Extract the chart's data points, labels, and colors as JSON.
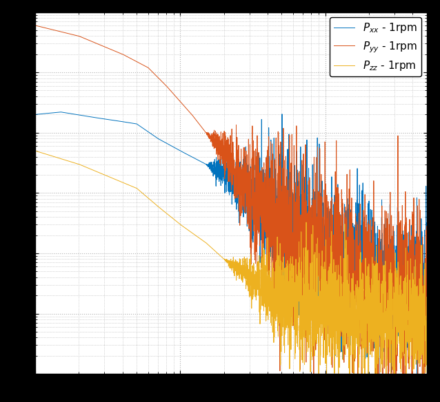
{
  "colors": {
    "pxx": "#0072BD",
    "pyy": "#D95319",
    "pzz": "#EDB120"
  },
  "legend_labels": [
    "$P_{xx}$ - 1rpm",
    "$P_{yy}$ - 1rpm",
    "$P_{zz}$ - 1rpm"
  ],
  "xlim": [
    1,
    500
  ],
  "ylim": [
    1e-10,
    0.0001
  ],
  "grid_color": "#b0b0b0",
  "background_color": "#ffffff",
  "bp_xx": [
    1,
    1.5,
    2.5,
    3.5,
    5,
    7,
    10,
    15,
    20,
    25,
    30,
    40,
    50,
    70,
    100,
    150,
    200,
    300,
    500
  ],
  "v_xx": [
    2e-06,
    2.2e-06,
    1.8e-06,
    1.6e-06,
    1.4e-06,
    8e-07,
    5e-07,
    3e-07,
    2e-07,
    1.5e-07,
    1e-07,
    6e-08,
    4e-08,
    2e-08,
    1e-08,
    6e-09,
    4e-09,
    3e-09,
    2e-09
  ],
  "bp_yy": [
    1,
    2,
    4,
    6,
    8,
    12,
    15,
    20,
    25,
    30,
    40,
    50,
    70,
    100,
    150,
    200,
    300,
    500
  ],
  "v_yy": [
    6e-05,
    4e-05,
    2e-05,
    1.2e-05,
    6e-06,
    2e-06,
    1e-06,
    5e-07,
    2e-07,
    1e-07,
    5e-08,
    3e-08,
    1.5e-08,
    8e-09,
    4e-09,
    3e-09,
    2e-09,
    1.5e-09
  ],
  "bp_zz": [
    1,
    2,
    3,
    5,
    7,
    10,
    15,
    20,
    30,
    40,
    50,
    70,
    100,
    150,
    200,
    300,
    500
  ],
  "v_zz": [
    5e-07,
    3e-07,
    2e-07,
    1.2e-07,
    6e-08,
    3e-08,
    1.5e-08,
    8e-09,
    4e-09,
    2.5e-09,
    2e-09,
    1.5e-09,
    1.2e-09,
    1e-09,
    9e-10,
    8e-10,
    7e-10
  ]
}
